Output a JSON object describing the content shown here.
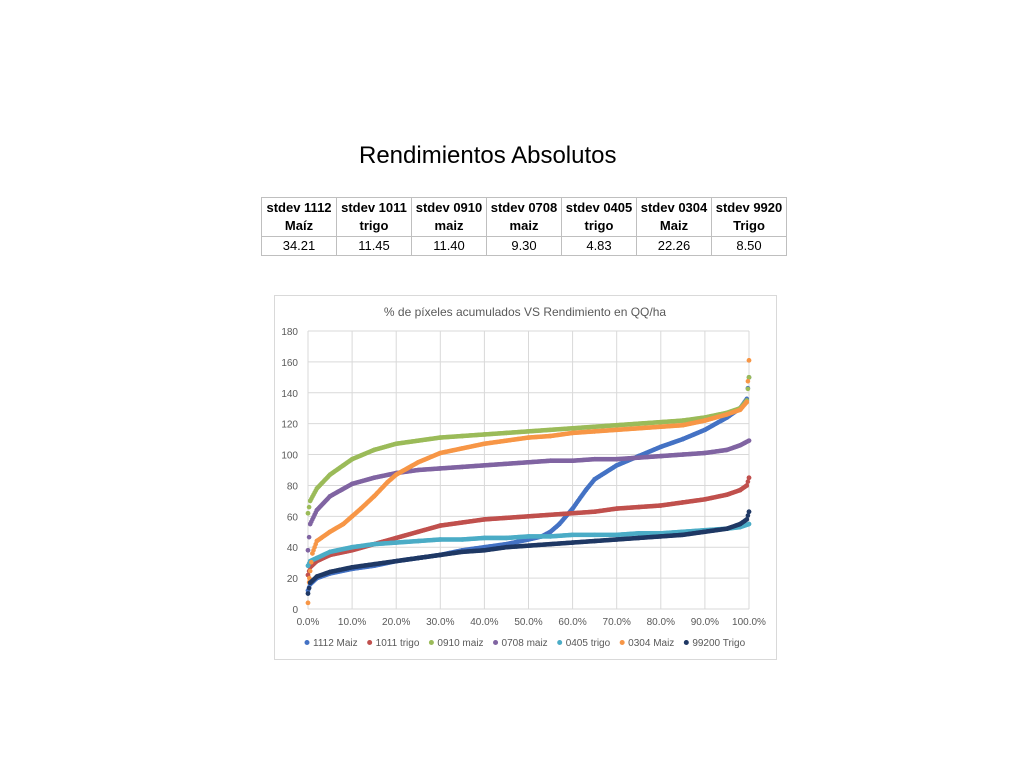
{
  "title": "Rendimientos Absolutos",
  "stats_table": {
    "headers": [
      [
        "stdev 1112",
        "Maíz"
      ],
      [
        "stdev 1011",
        "trigo"
      ],
      [
        "stdev 0910",
        "maiz"
      ],
      [
        "stdev 0708",
        "maiz"
      ],
      [
        "stdev 0405",
        "trigo"
      ],
      [
        "stdev 0304",
        "Maiz"
      ],
      [
        "stdev 9920",
        "Trigo"
      ]
    ],
    "values": [
      "34.21",
      "11.45",
      "11.40",
      "9.30",
      "4.83",
      "22.26",
      "8.50"
    ]
  },
  "chart_data": {
    "type": "scatter",
    "title": "% de píxeles acumulados VS Rendimiento en QQ/ha",
    "xlabel": "",
    "ylabel": "",
    "xlim": [
      0,
      100
    ],
    "ylim": [
      0,
      180
    ],
    "x_ticks": [
      "0.0%",
      "10.0%",
      "20.0%",
      "30.0%",
      "40.0%",
      "50.0%",
      "60.0%",
      "70.0%",
      "80.0%",
      "90.0%",
      "100.0%"
    ],
    "y_ticks": [
      "0",
      "20",
      "40",
      "60",
      "80",
      "100",
      "120",
      "140",
      "160",
      "180"
    ],
    "grid": true,
    "legend_position": "bottom",
    "series": [
      {
        "name": "1112 Maiz",
        "color": "#4472c4",
        "x": [
          0,
          0.5,
          2,
          5,
          10,
          15,
          20,
          25,
          30,
          35,
          40,
          45,
          50,
          53,
          55,
          57,
          60,
          63,
          65,
          70,
          75,
          80,
          85,
          90,
          95,
          98,
          99.5,
          100
        ],
        "y": [
          12,
          16,
          20,
          23,
          26,
          28,
          31,
          33,
          35,
          38,
          40,
          42,
          45,
          47,
          50,
          55,
          65,
          77,
          84,
          93,
          99,
          105,
          110,
          116,
          124,
          130,
          136,
          150
        ]
      },
      {
        "name": "1011 trigo",
        "color": "#c0504d",
        "x": [
          0,
          0.5,
          2,
          5,
          10,
          15,
          20,
          25,
          30,
          35,
          40,
          45,
          50,
          55,
          60,
          65,
          70,
          75,
          80,
          85,
          90,
          95,
          98,
          99.5,
          100
        ],
        "y": [
          22,
          27,
          31,
          35,
          38,
          42,
          46,
          50,
          54,
          56,
          58,
          59,
          60,
          61,
          62,
          63,
          65,
          66,
          67,
          69,
          71,
          74,
          77,
          80,
          85
        ]
      },
      {
        "name": "0910 maiz",
        "color": "#9bbb59",
        "x": [
          0,
          0.5,
          2,
          5,
          8,
          10,
          15,
          20,
          25,
          30,
          35,
          40,
          45,
          50,
          55,
          60,
          65,
          70,
          75,
          80,
          85,
          90,
          95,
          98,
          99.5,
          100
        ],
        "y": [
          62,
          70,
          78,
          87,
          93,
          97,
          103,
          107,
          109,
          111,
          112,
          113,
          114,
          115,
          116,
          117,
          118,
          119,
          120,
          121,
          122,
          124,
          127,
          130,
          135,
          150
        ]
      },
      {
        "name": "0708 maiz",
        "color": "#8064a2",
        "x": [
          0,
          0.5,
          2,
          5,
          10,
          15,
          20,
          25,
          30,
          35,
          40,
          45,
          50,
          55,
          60,
          65,
          70,
          75,
          80,
          85,
          90,
          95,
          98,
          100
        ],
        "y": [
          38,
          55,
          64,
          73,
          81,
          85,
          88,
          90,
          91,
          92,
          93,
          94,
          95,
          96,
          96,
          97,
          97,
          98,
          99,
          100,
          101,
          103,
          106,
          109
        ]
      },
      {
        "name": "0405 trigo",
        "color": "#4bacc6",
        "x": [
          0,
          0.5,
          2,
          5,
          10,
          15,
          20,
          25,
          30,
          35,
          40,
          45,
          50,
          55,
          60,
          65,
          70,
          75,
          80,
          85,
          90,
          95,
          98,
          100
        ],
        "y": [
          28,
          31,
          33,
          37,
          40,
          42,
          43,
          44,
          45,
          45,
          46,
          46,
          47,
          47,
          48,
          48,
          48,
          49,
          49,
          50,
          51,
          52,
          53,
          55
        ]
      },
      {
        "name": "0304 Maiz",
        "color": "#f79646",
        "x": [
          0,
          0.3,
          1,
          2,
          5,
          8,
          10,
          12,
          15,
          18,
          20,
          25,
          30,
          35,
          40,
          45,
          50,
          55,
          60,
          65,
          70,
          75,
          80,
          85,
          90,
          95,
          98,
          99.5,
          100
        ],
        "y": [
          4,
          20,
          36,
          44,
          50,
          55,
          60,
          65,
          73,
          82,
          87,
          95,
          101,
          104,
          107,
          109,
          111,
          112,
          114,
          115,
          116,
          117,
          118,
          119,
          122,
          126,
          129,
          134,
          161
        ]
      },
      {
        "name": "99200 Trigo",
        "color": "#1f3864",
        "x": [
          0,
          0.5,
          2,
          5,
          10,
          15,
          20,
          25,
          30,
          35,
          40,
          45,
          50,
          55,
          60,
          65,
          70,
          75,
          80,
          85,
          90,
          95,
          98,
          99.5,
          100
        ],
        "y": [
          10,
          17,
          21,
          24,
          27,
          29,
          31,
          33,
          35,
          37,
          38,
          40,
          41,
          42,
          43,
          44,
          45,
          46,
          47,
          48,
          50,
          52,
          55,
          58,
          63
        ]
      }
    ]
  }
}
